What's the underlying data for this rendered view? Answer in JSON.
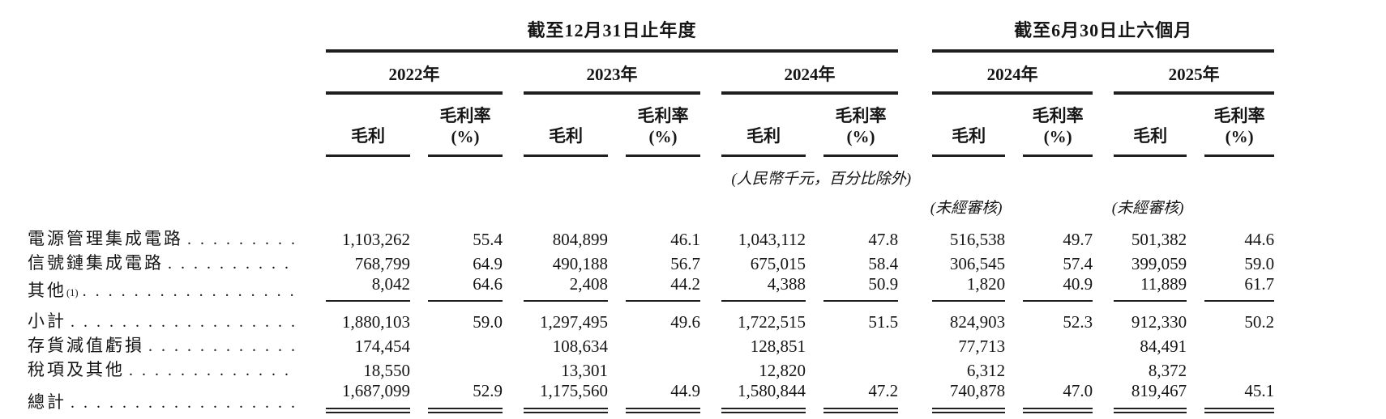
{
  "table": {
    "groups": [
      {
        "title": "截至12月31日止年度",
        "years": [
          "2022年",
          "2023年",
          "2024年"
        ]
      },
      {
        "title": "截至6月30日止六個月",
        "years": [
          "2024年",
          "2025年"
        ]
      }
    ],
    "column_headers": {
      "gross_profit": "毛利",
      "gross_margin": "毛利率(%)"
    },
    "unit_note": "(人民幣千元，百分比除外)",
    "unaudited_note": "(未經審核)",
    "rows": [
      {
        "label": "電源管理集成電路",
        "sup": "",
        "emphasis": false,
        "rule_below": null,
        "values": [
          "1,103,262",
          "55.4",
          "804,899",
          "46.1",
          "1,043,112",
          "47.8",
          "516,538",
          "49.7",
          "501,382",
          "44.6"
        ]
      },
      {
        "label": "信號鏈集成電路",
        "sup": "",
        "emphasis": false,
        "rule_below": null,
        "values": [
          "768,799",
          "64.9",
          "490,188",
          "56.7",
          "675,015",
          "58.4",
          "306,545",
          "57.4",
          "399,059",
          "59.0"
        ]
      },
      {
        "label": "其他",
        "sup": "(1)",
        "emphasis": false,
        "rule_below": "single",
        "values": [
          "8,042",
          "64.6",
          "2,408",
          "44.2",
          "4,388",
          "50.9",
          "1,820",
          "40.9",
          "11,889",
          "61.7"
        ]
      },
      {
        "label": "小計",
        "sup": "",
        "emphasis": true,
        "rule_below": null,
        "values": [
          "1,880,103",
          "59.0",
          "1,297,495",
          "49.6",
          "1,722,515",
          "51.5",
          "824,903",
          "52.3",
          "912,330",
          "50.2"
        ]
      },
      {
        "label": "存貨減值虧損",
        "sup": "",
        "emphasis": false,
        "rule_below": null,
        "values": [
          "174,454",
          "",
          "108,634",
          "",
          "128,851",
          "",
          "77,713",
          "",
          "84,491",
          ""
        ]
      },
      {
        "label": "稅項及其他",
        "sup": "",
        "emphasis": false,
        "rule_below": null,
        "values": [
          "18,550",
          "",
          "13,301",
          "",
          "12,820",
          "",
          "6,312",
          "",
          "8,372",
          ""
        ]
      },
      {
        "label": "總計",
        "sup": "",
        "emphasis": true,
        "rule_below": "double",
        "values": [
          "1,687,099",
          "52.9",
          "1,175,560",
          "44.9",
          "1,580,844",
          "47.2",
          "740,878",
          "47.0",
          "819,467",
          "45.1"
        ]
      }
    ]
  }
}
